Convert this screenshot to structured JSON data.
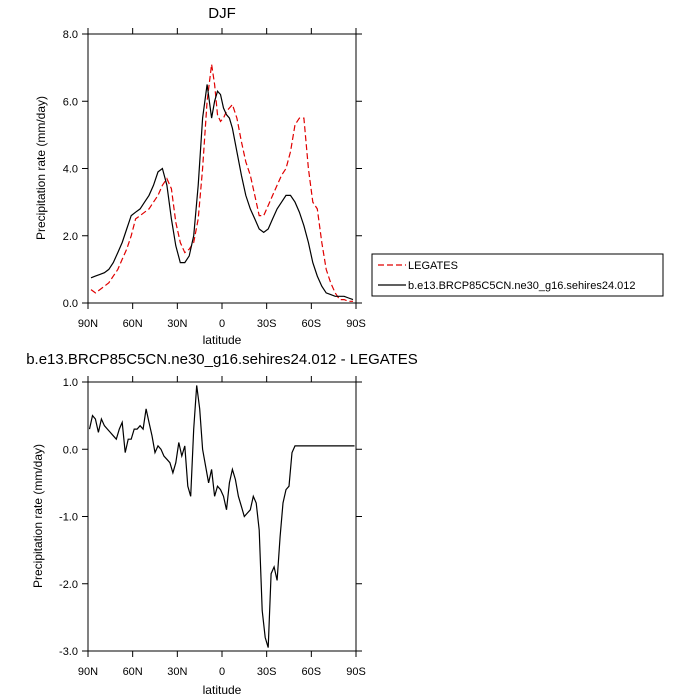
{
  "chart_data": [
    {
      "type": "line",
      "title": "DJF",
      "xlabel": "latitude",
      "ylabel": "Precipitation rate (mm/day)",
      "xlim": [
        90,
        -90
      ],
      "ylim": [
        0,
        8
      ],
      "xticks": [
        90,
        60,
        30,
        0,
        -30,
        -60,
        -90
      ],
      "xtick_labels": [
        "90N",
        "60N",
        "30N",
        "0",
        "30S",
        "60S",
        "90S"
      ],
      "yticks": [
        0,
        2,
        4,
        6,
        8
      ],
      "ytick_labels": [
        "0.0",
        "2.0",
        "4.0",
        "6.0",
        "8.0"
      ],
      "legend_position": "outside-right",
      "series": [
        {
          "name": "LEGATES",
          "color": "#e00000",
          "dash": "dashed",
          "x": [
            88,
            85,
            82,
            79,
            76,
            73,
            70,
            67,
            64,
            61,
            58,
            55,
            52,
            49,
            46,
            43,
            40,
            37,
            34,
            31,
            28,
            25,
            22,
            19,
            16,
            13,
            10,
            7,
            5,
            3,
            1,
            -1,
            -3,
            -5,
            -7,
            -10,
            -13,
            -16,
            -19,
            -22,
            -25,
            -28,
            -31,
            -34,
            -37,
            -40,
            -43,
            -46,
            -49,
            -52,
            -55,
            -58,
            -61,
            -64,
            -67,
            -70,
            -73,
            -76,
            -79,
            -82,
            -85,
            -88
          ],
          "y": [
            0.4,
            0.3,
            0.4,
            0.5,
            0.6,
            0.8,
            1.0,
            1.3,
            1.6,
            2.0,
            2.5,
            2.6,
            2.7,
            2.8,
            3.0,
            3.2,
            3.5,
            3.7,
            3.4,
            2.4,
            1.8,
            1.5,
            1.6,
            1.8,
            2.5,
            4.0,
            6.0,
            7.1,
            6.5,
            5.6,
            5.4,
            5.5,
            5.7,
            5.8,
            5.9,
            5.5,
            4.8,
            4.2,
            3.8,
            3.2,
            2.6,
            2.6,
            2.9,
            3.2,
            3.5,
            3.8,
            4.0,
            4.5,
            5.3,
            5.5,
            5.5,
            4.0,
            3.0,
            2.8,
            1.8,
            1.0,
            0.6,
            0.3,
            0.1,
            0.1,
            0.05,
            0.05
          ]
        },
        {
          "name": "b.e13.BRCP85C5CN.ne30_g16.sehires24.012",
          "color": "#000000",
          "dash": "solid",
          "x": [
            88,
            85,
            82,
            79,
            76,
            73,
            70,
            67,
            64,
            61,
            58,
            55,
            52,
            49,
            46,
            43,
            40,
            37,
            34,
            31,
            28,
            25,
            22,
            19,
            16,
            13,
            10,
            7,
            5,
            3,
            1,
            -1,
            -3,
            -5,
            -7,
            -10,
            -13,
            -16,
            -19,
            -22,
            -25,
            -28,
            -31,
            -34,
            -37,
            -40,
            -43,
            -46,
            -49,
            -52,
            -55,
            -58,
            -61,
            -64,
            -67,
            -70,
            -73,
            -76,
            -79,
            -82,
            -85,
            -88
          ],
          "y": [
            0.75,
            0.8,
            0.85,
            0.9,
            1.0,
            1.2,
            1.5,
            1.8,
            2.2,
            2.6,
            2.7,
            2.8,
            3.0,
            3.2,
            3.5,
            3.9,
            4.0,
            3.5,
            2.5,
            1.7,
            1.2,
            1.2,
            1.4,
            2.0,
            3.5,
            5.5,
            6.5,
            5.5,
            6.0,
            6.3,
            6.2,
            5.8,
            5.6,
            5.5,
            5.2,
            4.5,
            3.8,
            3.2,
            2.8,
            2.5,
            2.2,
            2.1,
            2.2,
            2.5,
            2.8,
            3.0,
            3.2,
            3.2,
            3.0,
            2.7,
            2.3,
            1.8,
            1.2,
            0.8,
            0.5,
            0.3,
            0.25,
            0.2,
            0.2,
            0.2,
            0.15,
            0.1
          ]
        }
      ]
    },
    {
      "type": "line",
      "title": "b.e13.BRCP85C5CN.ne30_g16.sehires24.012 - LEGATES",
      "xlabel": "latitude",
      "ylabel": "Precipitation rate (mm/day)",
      "xlim": [
        90,
        -90
      ],
      "ylim": [
        -3,
        1
      ],
      "xticks": [
        90,
        60,
        30,
        0,
        -30,
        -60,
        -90
      ],
      "xtick_labels": [
        "90N",
        "60N",
        "30N",
        "0",
        "30S",
        "60S",
        "90S"
      ],
      "yticks": [
        -3,
        -2,
        -1,
        0,
        1
      ],
      "ytick_labels": [
        "-3.0",
        "-2.0",
        "-1.0",
        "0.0",
        "1.0"
      ],
      "series": [
        {
          "color": "#000000",
          "dash": "solid",
          "x": [
            89,
            87,
            85,
            83,
            81,
            79,
            77,
            75,
            73,
            71,
            69,
            67,
            65,
            63,
            61,
            59,
            57,
            55,
            53,
            51,
            49,
            47,
            45,
            43,
            41,
            39,
            37,
            35,
            33,
            31,
            29,
            27,
            25,
            23,
            21,
            19,
            17,
            15,
            13,
            11,
            9,
            7,
            5,
            3,
            1,
            -1,
            -3,
            -5,
            -7,
            -9,
            -11,
            -13,
            -15,
            -17,
            -19,
            -21,
            -23,
            -25,
            -27,
            -29,
            -31,
            -33,
            -35,
            -37,
            -39,
            -41,
            -43,
            -45,
            -47,
            -49,
            -51,
            -53,
            -55,
            -57,
            -59,
            -61,
            -63,
            -65,
            -67,
            -69,
            -71,
            -73,
            -75,
            -77,
            -79,
            -81,
            -83,
            -85,
            -87,
            -89
          ],
          "y": [
            0.3,
            0.5,
            0.45,
            0.25,
            0.45,
            0.35,
            0.3,
            0.25,
            0.2,
            0.15,
            0.3,
            0.4,
            -0.05,
            0.15,
            0.15,
            0.3,
            0.3,
            0.35,
            0.3,
            0.6,
            0.4,
            0.2,
            -0.05,
            0.05,
            0.0,
            -0.1,
            -0.15,
            -0.2,
            -0.35,
            -0.2,
            0.1,
            -0.1,
            0.05,
            -0.55,
            -0.7,
            0.3,
            0.95,
            0.6,
            0.0,
            -0.25,
            -0.5,
            -0.3,
            -0.7,
            -0.55,
            -0.6,
            -0.7,
            -0.9,
            -0.5,
            -0.3,
            -0.45,
            -0.7,
            -0.85,
            -1.0,
            -0.95,
            -0.9,
            -0.7,
            -0.8,
            -1.2,
            -2.4,
            -2.8,
            -2.95,
            -1.85,
            -1.75,
            -1.95,
            -1.3,
            -0.8,
            -0.6,
            -0.55,
            -0.05,
            0.05,
            0.05,
            0.05,
            0.05,
            0.05,
            0.05,
            0.05,
            0.05,
            0.05,
            0.05,
            0.05,
            0.05,
            0.05,
            0.05,
            0.05,
            0.05,
            0.05,
            0.05,
            0.05,
            0.05,
            0.05
          ]
        }
      ]
    }
  ]
}
